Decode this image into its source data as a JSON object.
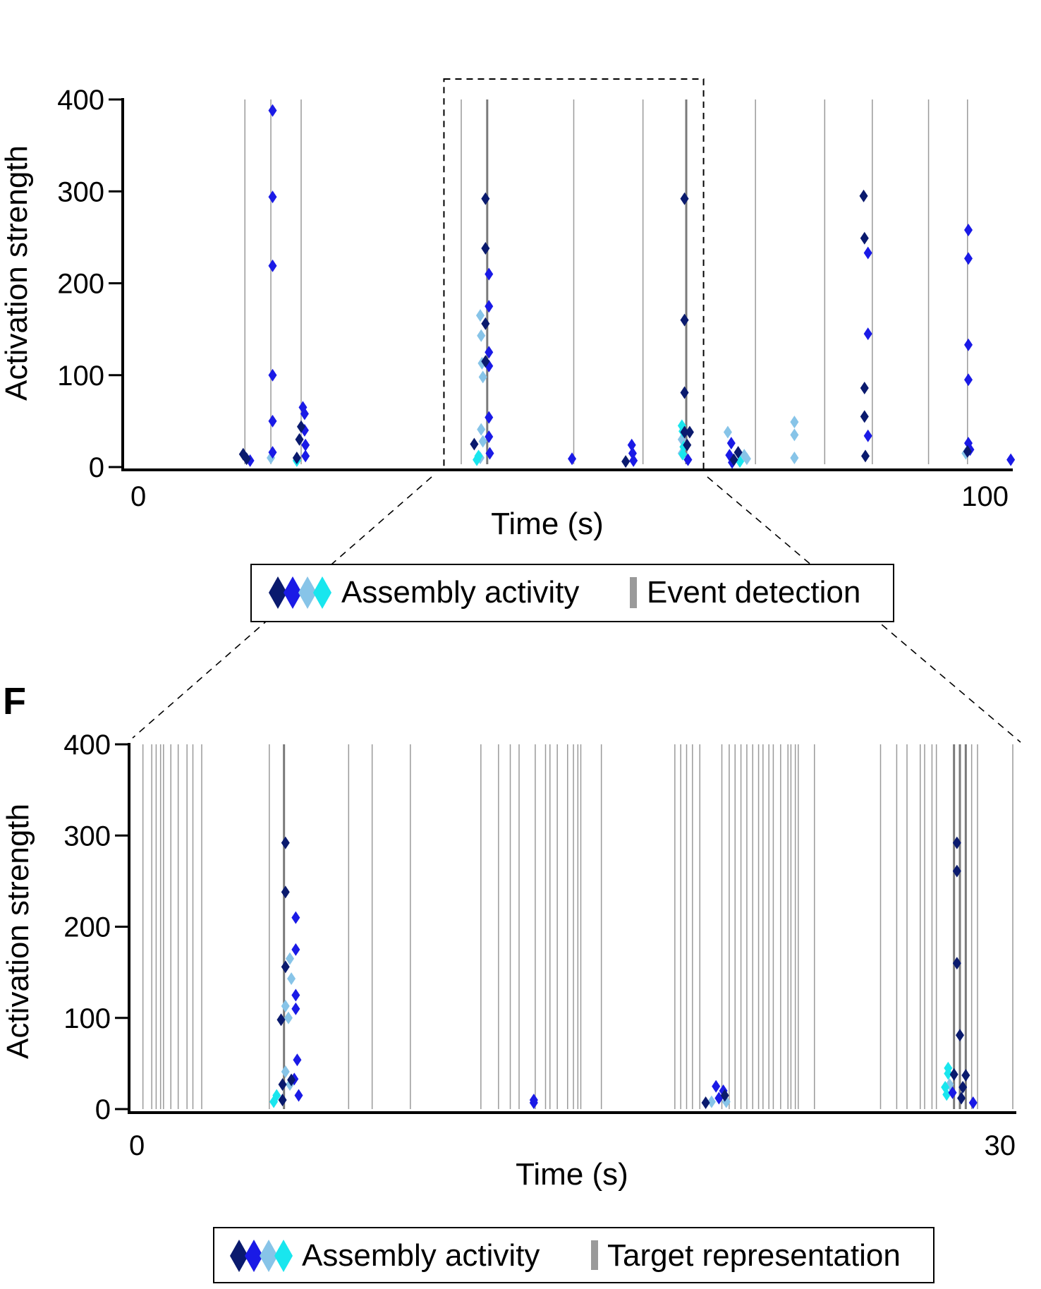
{
  "colors": {
    "assembly_1": "#0a1a6e",
    "assembly_2": "#1a1ae6",
    "assembly_3": "#87c4e8",
    "assembly_4": "#19e6ee",
    "event_line": "#9a9a9a",
    "target_line": "#9a9a9a"
  },
  "chart_data": [
    {
      "type": "scatter",
      "panel_letter": "",
      "xlabel": "Time (s)",
      "ylabel": "Activation strength",
      "xlim": [
        0,
        100
      ],
      "ylim": [
        0,
        400
      ],
      "x_tick_labels": [
        {
          "value": 0,
          "label": "0"
        },
        {
          "value": 100,
          "label": "100"
        }
      ],
      "y_tick_labels": [
        {
          "value": 0,
          "label": "0"
        },
        {
          "value": 100,
          "label": "100"
        },
        {
          "value": 200,
          "label": "200"
        },
        {
          "value": 300,
          "label": "300"
        },
        {
          "value": 400,
          "label": "400"
        }
      ],
      "zoom_window": [
        35,
        65
      ],
      "event_lines": [
        12.0,
        15.0,
        18.5,
        37.0,
        40.0,
        50.0,
        58.0,
        63.0,
        71.0,
        79.0,
        84.5,
        91.0,
        95.5
      ],
      "event_lines_thick": [
        40.0,
        63.0
      ],
      "series": [
        {
          "assembly": 1,
          "points": [
            [
              11.8,
              14
            ],
            [
              12.2,
              9
            ],
            [
              38.5,
              25
            ],
            [
              39.8,
              292
            ],
            [
              39.8,
              238
            ],
            [
              39.8,
              156
            ],
            [
              39.8,
              115
            ],
            [
              18.0,
              10
            ],
            [
              18.3,
              30
            ],
            [
              18.5,
              44
            ],
            [
              62.8,
              292
            ],
            [
              62.8,
              160
            ],
            [
              62.8,
              81
            ],
            [
              62.8,
              38
            ],
            [
              63.1,
              24
            ],
            [
              63.4,
              38
            ],
            [
              68.5,
              8
            ],
            [
              83.5,
              295
            ],
            [
              83.6,
              249
            ],
            [
              83.6,
              86
            ],
            [
              83.6,
              55
            ],
            [
              83.7,
              12
            ],
            [
              95.5,
              17
            ],
            [
              69.0,
              16
            ],
            [
              56.0,
              6
            ]
          ]
        },
        {
          "assembly": 2,
          "points": [
            [
              12.6,
              7
            ],
            [
              15.2,
              388
            ],
            [
              15.2,
              294
            ],
            [
              15.2,
              219
            ],
            [
              15.2,
              100
            ],
            [
              15.2,
              50
            ],
            [
              15.2,
              16
            ],
            [
              18.7,
              65
            ],
            [
              18.9,
              58
            ],
            [
              18.9,
              40
            ],
            [
              19.0,
              24
            ],
            [
              19.0,
              12
            ],
            [
              40.2,
              210
            ],
            [
              40.2,
              175
            ],
            [
              40.2,
              125
            ],
            [
              40.2,
              110
            ],
            [
              40.2,
              54
            ],
            [
              40.2,
              33
            ],
            [
              40.3,
              15
            ],
            [
              49.8,
              9
            ],
            [
              56.7,
              24
            ],
            [
              56.8,
              15
            ],
            [
              56.9,
              7
            ],
            [
              63.2,
              8
            ],
            [
              68.2,
              26
            ],
            [
              68.0,
              13
            ],
            [
              68.3,
              5
            ],
            [
              84.0,
              233
            ],
            [
              84.0,
              145
            ],
            [
              84.0,
              34
            ],
            [
              95.6,
              258
            ],
            [
              95.6,
              227
            ],
            [
              95.6,
              133
            ],
            [
              95.6,
              95
            ],
            [
              95.6,
              26
            ],
            [
              95.8,
              19
            ],
            [
              100.5,
              8
            ]
          ]
        },
        {
          "assembly": 3,
          "points": [
            [
              15.0,
              10
            ],
            [
              39.2,
              165
            ],
            [
              39.3,
              143
            ],
            [
              39.4,
              113
            ],
            [
              39.5,
              98
            ],
            [
              39.3,
              41
            ],
            [
              39.5,
              28
            ],
            [
              39.2,
              10
            ],
            [
              62.5,
              30
            ],
            [
              62.5,
              15
            ],
            [
              67.8,
              38
            ],
            [
              69.7,
              13
            ],
            [
              70.0,
              9
            ],
            [
              75.5,
              49
            ],
            [
              75.5,
              35
            ],
            [
              75.5,
              10
            ],
            [
              95.3,
              15
            ]
          ]
        },
        {
          "assembly": 4,
          "points": [
            [
              18.0,
              7
            ],
            [
              38.8,
              8
            ],
            [
              39.0,
              12
            ],
            [
              62.5,
              45
            ],
            [
              62.6,
              39
            ],
            [
              62.7,
              22
            ],
            [
              62.6,
              14
            ],
            [
              69.2,
              6
            ]
          ]
        }
      ]
    },
    {
      "type": "scatter",
      "panel_letter": "F",
      "xlabel": "Time (s)",
      "ylabel": "Activation strength",
      "xlim": [
        0,
        30
      ],
      "ylim": [
        0,
        400
      ],
      "x_tick_labels": [
        {
          "value": 0,
          "label": "0"
        },
        {
          "value": 30,
          "label": "30"
        }
      ],
      "y_tick_labels": [
        {
          "value": 0,
          "label": "0"
        },
        {
          "value": 100,
          "label": "100"
        },
        {
          "value": 200,
          "label": "200"
        },
        {
          "value": 300,
          "label": "300"
        },
        {
          "value": 400,
          "label": "400"
        }
      ],
      "target_lines": [
        0.4,
        0.7,
        0.85,
        1.0,
        1.1,
        1.35,
        1.6,
        1.9,
        2.1,
        2.4,
        4.7,
        5.2,
        7.4,
        8.2,
        9.5,
        11.9,
        12.5,
        12.9,
        13.2,
        13.75,
        14.1,
        14.25,
        14.5,
        14.85,
        15.05,
        15.2,
        15.3,
        16.0,
        18.5,
        18.7,
        18.9,
        19.1,
        19.35,
        20.1,
        20.35,
        20.55,
        20.75,
        20.95,
        21.15,
        21.35,
        21.5,
        21.7,
        21.85,
        22.1,
        22.35,
        22.45,
        22.6,
        22.7,
        23.25,
        25.5,
        26.05,
        26.4,
        26.85,
        27.0,
        27.25,
        27.4,
        28.0,
        28.2,
        28.4,
        28.6,
        28.8,
        30.0
      ],
      "target_lines_thick": [
        5.25,
        28.1
      ],
      "series": [
        {
          "assembly": 1,
          "points": [
            [
              5.25,
              292
            ],
            [
              5.25,
              238
            ],
            [
              5.25,
              156
            ],
            [
              5.1,
              98
            ],
            [
              5.15,
              27
            ],
            [
              5.15,
              10
            ],
            [
              5.45,
              32
            ],
            [
              28.1,
              292
            ],
            [
              28.1,
              261
            ],
            [
              28.1,
              160
            ],
            [
              28.2,
              81
            ],
            [
              28.0,
              38
            ],
            [
              28.3,
              24
            ],
            [
              28.4,
              37
            ],
            [
              28.25,
              12
            ],
            [
              19.55,
              7
            ],
            [
              20.2,
              15
            ]
          ]
        },
        {
          "assembly": 2,
          "points": [
            [
              5.6,
              210
            ],
            [
              5.6,
              175
            ],
            [
              5.6,
              125
            ],
            [
              5.6,
              110
            ],
            [
              5.65,
              54
            ],
            [
              5.55,
              33
            ],
            [
              5.7,
              15
            ],
            [
              13.7,
              10
            ],
            [
              13.7,
              7
            ],
            [
              19.9,
              25
            ],
            [
              20.0,
              12
            ],
            [
              20.15,
              20
            ],
            [
              28.65,
              7
            ],
            [
              27.95,
              18
            ]
          ]
        },
        {
          "assembly": 3,
          "points": [
            [
              5.4,
              165
            ],
            [
              5.45,
              143
            ],
            [
              5.25,
              113
            ],
            [
              5.35,
              100
            ],
            [
              5.25,
              41
            ],
            [
              5.4,
              27
            ],
            [
              19.75,
              8
            ],
            [
              20.25,
              8
            ],
            [
              27.85,
              27
            ]
          ]
        },
        {
          "assembly": 4,
          "points": [
            [
              4.85,
              8
            ],
            [
              4.95,
              15
            ],
            [
              27.8,
              45
            ],
            [
              27.8,
              39
            ],
            [
              27.7,
              24
            ],
            [
              27.75,
              16
            ]
          ]
        }
      ]
    }
  ],
  "legends": [
    {
      "symbol_label": "Assembly activity",
      "line_label": "Event detection"
    },
    {
      "symbol_label": "Assembly activity",
      "line_label": "Target representation"
    }
  ]
}
